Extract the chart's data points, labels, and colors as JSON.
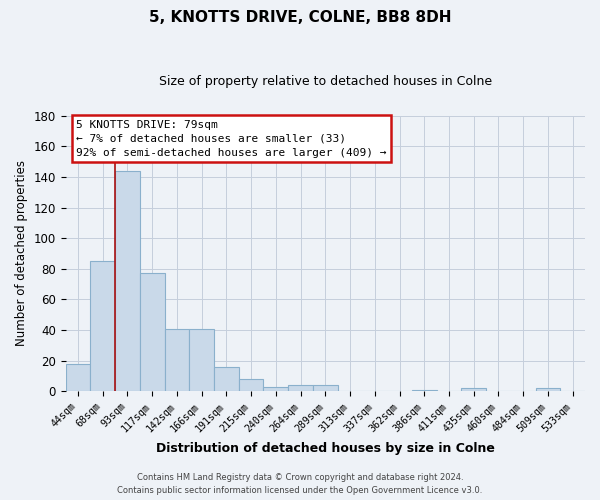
{
  "title": "5, KNOTTS DRIVE, COLNE, BB8 8DH",
  "subtitle": "Size of property relative to detached houses in Colne",
  "xlabel": "Distribution of detached houses by size in Colne",
  "ylabel": "Number of detached properties",
  "bar_labels": [
    "44sqm",
    "68sqm",
    "93sqm",
    "117sqm",
    "142sqm",
    "166sqm",
    "191sqm",
    "215sqm",
    "240sqm",
    "264sqm",
    "289sqm",
    "313sqm",
    "337sqm",
    "362sqm",
    "386sqm",
    "411sqm",
    "435sqm",
    "460sqm",
    "484sqm",
    "509sqm",
    "533sqm"
  ],
  "bar_values": [
    18,
    85,
    144,
    77,
    41,
    41,
    16,
    8,
    3,
    4,
    4,
    0,
    0,
    0,
    1,
    0,
    2,
    0,
    0,
    2,
    0
  ],
  "bar_color": "#c9d9e9",
  "bar_edge_color": "#8ab0cc",
  "ylim": [
    0,
    180
  ],
  "yticks": [
    0,
    20,
    40,
    60,
    80,
    100,
    120,
    140,
    160,
    180
  ],
  "annotation_title": "5 KNOTTS DRIVE: 79sqm",
  "annotation_line1": "← 7% of detached houses are smaller (33)",
  "annotation_line2": "92% of semi-detached houses are larger (409) →",
  "annotation_box_facecolor": "#ffffff",
  "annotation_box_edgecolor": "#cc1111",
  "vertical_line_color": "#aa1111",
  "vertical_line_x": 1,
  "footer_line1": "Contains HM Land Registry data © Crown copyright and database right 2024.",
  "footer_line2": "Contains public sector information licensed under the Open Government Licence v3.0.",
  "background_color": "#eef2f7",
  "plot_bg_color": "#eef2f7",
  "grid_color": "#c5cedc"
}
